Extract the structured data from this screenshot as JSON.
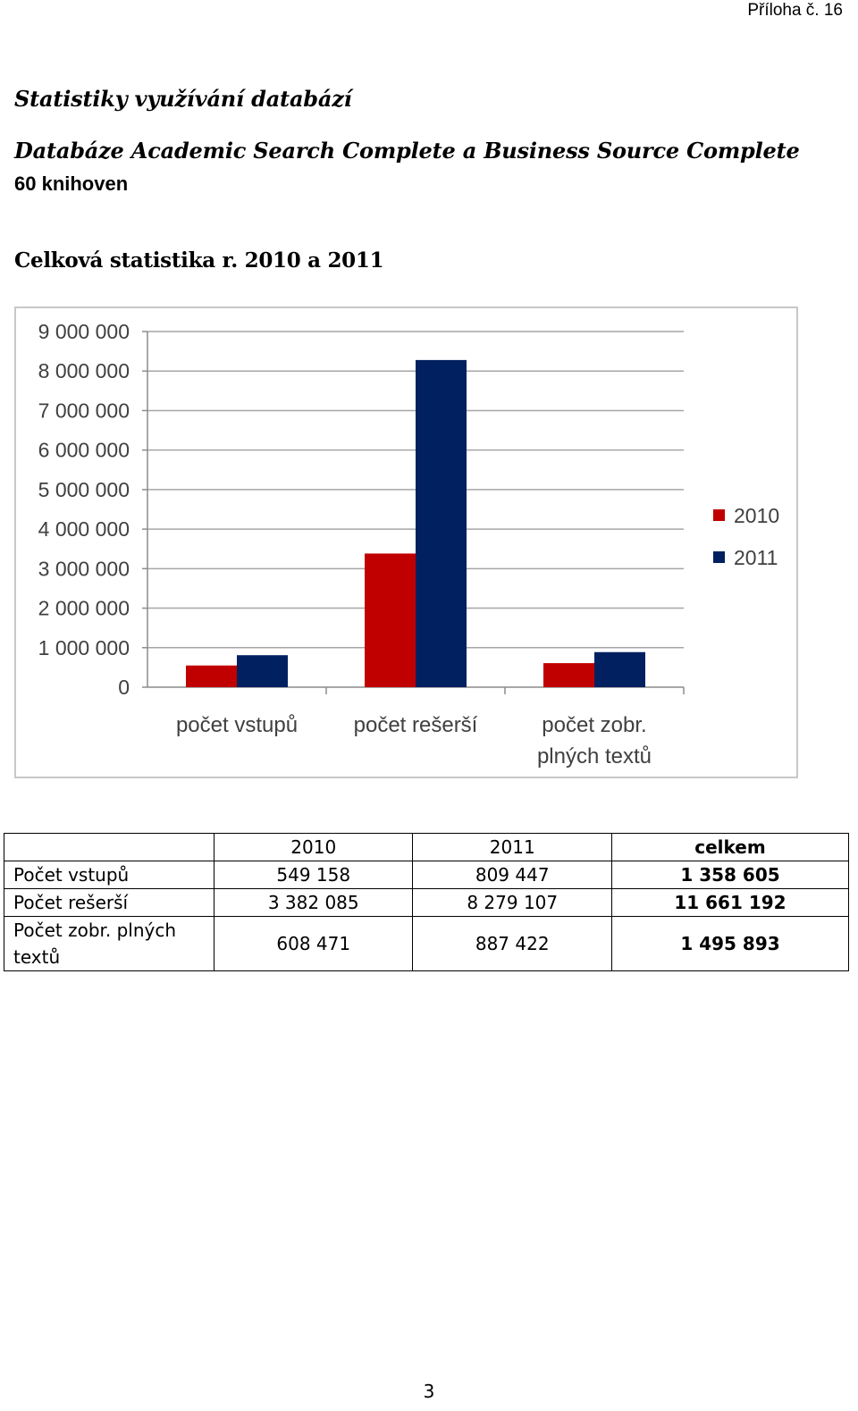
{
  "header": {
    "annex": "Příloha č. 16"
  },
  "titles": {
    "main": "Statistiky využívání databází",
    "database": "Databáze Academic Search Complete a Business Source Complete",
    "libraries": "60 knihoven",
    "section": "Celková statistika r. 2010 a 2011"
  },
  "chart_data": {
    "type": "bar",
    "categories": [
      "počet vstupů",
      "počet rešerší",
      [
        "počet zobr.",
        "plných textů"
      ]
    ],
    "series": [
      {
        "name": "2010",
        "values": [
          549158,
          3382085,
          608471
        ],
        "color": "#c00000"
      },
      {
        "name": "2011",
        "values": [
          809447,
          8279107,
          887422
        ],
        "color": "#002060"
      }
    ],
    "yticks": [
      "0",
      "1 000 000",
      "2 000 000",
      "3 000 000",
      "4 000 000",
      "5 000 000",
      "6 000 000",
      "7 000 000",
      "8 000 000",
      "9 000 000"
    ],
    "ylim": [
      0,
      9000000
    ],
    "grid": true,
    "legend_position": "right"
  },
  "table": {
    "headers": [
      "",
      "2010",
      "2011",
      "celkem"
    ],
    "rows": [
      {
        "label": "Počet vstupů",
        "v2010": "549 158",
        "v2011": "809 447",
        "total": "1 358 605"
      },
      {
        "label": "Počet rešerší",
        "v2010": "3 382 085",
        "v2011": "8 279 107",
        "total": "11 661 192"
      },
      {
        "label": "Počet zobr.  plných textů",
        "v2010": "608 471",
        "v2011": "887 422",
        "total": "1 495 893"
      }
    ]
  },
  "footer": {
    "page_number": "3"
  }
}
